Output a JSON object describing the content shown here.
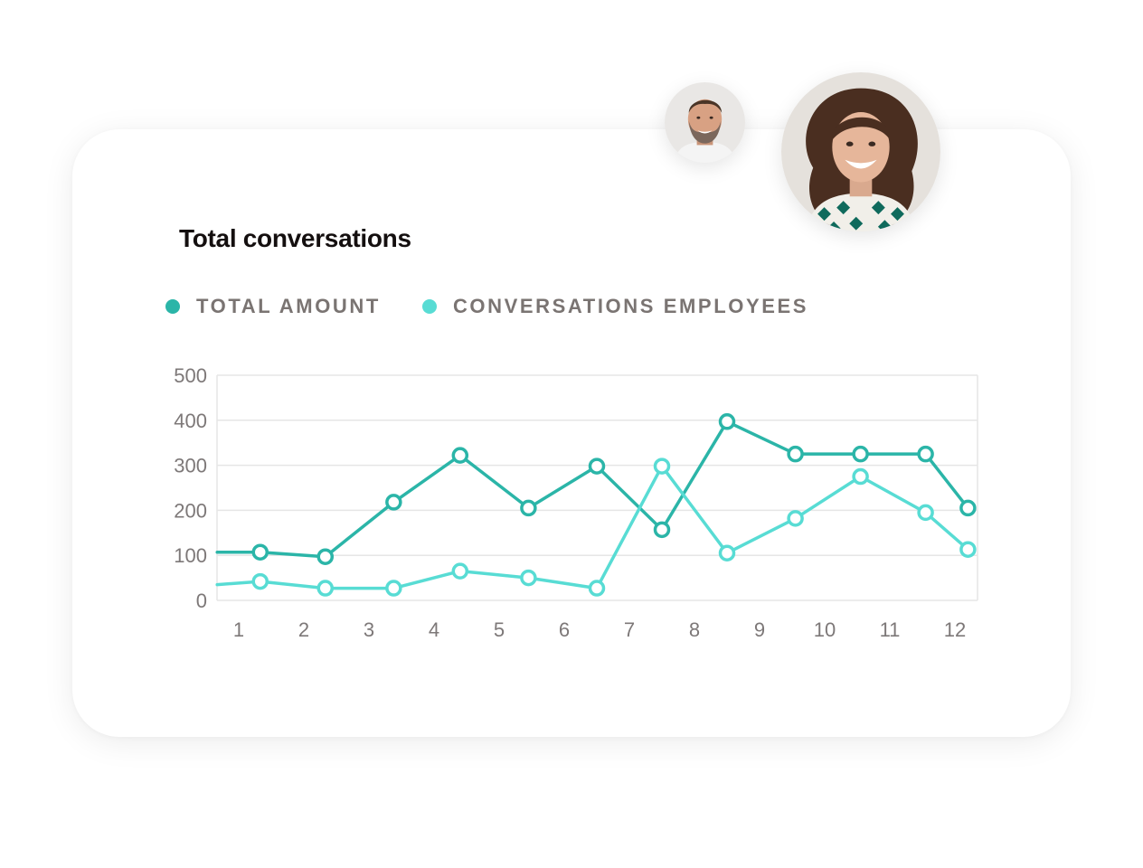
{
  "colors": {
    "total_amount": "#2bb5a8",
    "conversations_employees": "#58dcd4",
    "grid": "#e6e6e6",
    "text_muted": "#7d7878",
    "title": "#140f0f"
  },
  "avatars": [
    {
      "name": "man-avatar",
      "icon": "person-photo"
    },
    {
      "name": "woman-avatar",
      "icon": "person-photo"
    }
  ],
  "chart_data": {
    "type": "line",
    "title": "Total conversations",
    "xlabel": "",
    "ylabel": "",
    "categories": [
      "1",
      "2",
      "3",
      "4",
      "5",
      "6",
      "7",
      "8",
      "9",
      "10",
      "11",
      "12"
    ],
    "x_range": [
      0.67,
      12.22
    ],
    "ylim": [
      0,
      500
    ],
    "yticks": [
      "0",
      "100",
      "200",
      "300",
      "400",
      "500"
    ],
    "grid": true,
    "legend_position": "top-left",
    "series": [
      {
        "name": "TOTAL AMOUNT",
        "color": "#2bb5a8",
        "points": [
          {
            "x": 0.67,
            "y": 107,
            "marker": false
          },
          {
            "x": 1.33,
            "y": 107,
            "marker": true
          },
          {
            "x": 2.33,
            "y": 97,
            "marker": true
          },
          {
            "x": 3.38,
            "y": 218,
            "marker": true
          },
          {
            "x": 4.4,
            "y": 322,
            "marker": true
          },
          {
            "x": 5.45,
            "y": 205,
            "marker": true
          },
          {
            "x": 6.5,
            "y": 298,
            "marker": true
          },
          {
            "x": 7.5,
            "y": 157,
            "marker": true
          },
          {
            "x": 8.5,
            "y": 397,
            "marker": true
          },
          {
            "x": 9.55,
            "y": 325,
            "marker": true
          },
          {
            "x": 10.55,
            "y": 325,
            "marker": true
          },
          {
            "x": 11.55,
            "y": 325,
            "marker": true
          },
          {
            "x": 12.2,
            "y": 205,
            "marker": true
          }
        ]
      },
      {
        "name": "CONVERSATIONS EMPLOYEES",
        "color": "#58dcd4",
        "points": [
          {
            "x": 0.67,
            "y": 35,
            "marker": false
          },
          {
            "x": 1.33,
            "y": 42,
            "marker": true
          },
          {
            "x": 2.33,
            "y": 27,
            "marker": true
          },
          {
            "x": 3.38,
            "y": 27,
            "marker": true
          },
          {
            "x": 4.4,
            "y": 65,
            "marker": true
          },
          {
            "x": 5.45,
            "y": 50,
            "marker": true
          },
          {
            "x": 6.5,
            "y": 27,
            "marker": true
          },
          {
            "x": 7.5,
            "y": 298,
            "marker": true
          },
          {
            "x": 8.5,
            "y": 105,
            "marker": true
          },
          {
            "x": 9.55,
            "y": 182,
            "marker": true
          },
          {
            "x": 10.55,
            "y": 275,
            "marker": true
          },
          {
            "x": 11.55,
            "y": 195,
            "marker": true
          },
          {
            "x": 12.2,
            "y": 113,
            "marker": true
          }
        ]
      }
    ]
  }
}
